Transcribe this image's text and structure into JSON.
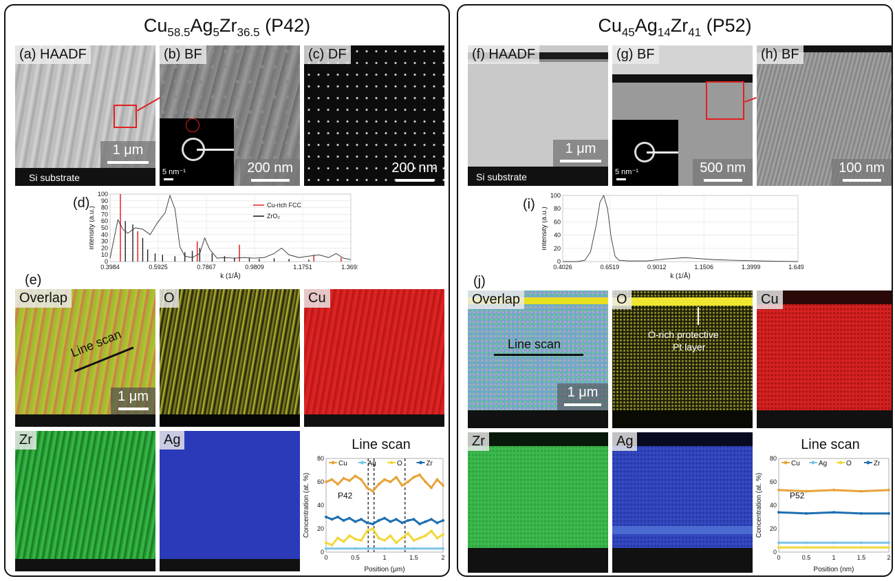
{
  "left": {
    "title": {
      "pre": "Cu",
      "s1": "58.5",
      "m1": "Ag",
      "s2": "5",
      "m2": "Zr",
      "s3": "36.5",
      "post": " (P42)"
    },
    "a": {
      "label": "(a) HAADF",
      "scale": "1 μm",
      "substrate": "Si substrate"
    },
    "b": {
      "label": "(b) BF",
      "scale": "200 nm",
      "inset_scale": "5 nm⁻¹"
    },
    "c": {
      "label": "(c) DF",
      "scale": "200 nm"
    },
    "d_letter": "(d)",
    "e_letter": "(e)",
    "maps": {
      "overlap": "Overlap",
      "o": "O",
      "cu": "Cu",
      "zr": "Zr",
      "ag": "Ag",
      "line_scan_label": "Line scan",
      "scale": "1 μm"
    }
  },
  "right": {
    "title": {
      "pre": "Cu",
      "s1": "45",
      "m1": "Ag",
      "s2": "14",
      "m2": "Zr",
      "s3": "41",
      "post": " (P52)"
    },
    "f": {
      "label": "(f) HAADF",
      "scale": "1 μm",
      "substrate": "Si substrate"
    },
    "g": {
      "label": "(g) BF",
      "scale": "500 nm",
      "inset_scale": "5 nm⁻¹"
    },
    "h": {
      "label": "(h) BF",
      "scale": "100 nm"
    },
    "i_letter": "(i)",
    "j_letter": "(j)",
    "maps": {
      "overlap": "Overlap",
      "o": "O",
      "cu": "Cu",
      "zr": "Zr",
      "ag": "Ag",
      "line_scan_label": "Line scan",
      "scale": "1 μm",
      "o_note_1": "O-rich protective",
      "o_note_2": "Pt layer"
    }
  },
  "colors": {
    "cu": "#e8a33a",
    "ag": "#7cc4e8",
    "o": "#f2d83a",
    "zr": "#1f6fb2",
    "fcc": "#e03030",
    "zro2": "#222222"
  },
  "chart_data": [
    {
      "id": "d",
      "type": "line",
      "xlabel": "k (1/Å)",
      "ylabel": "Intensity (a.u.)",
      "xlim": [
        0.3984,
        1.3693
      ],
      "ylim": [
        0,
        100
      ],
      "xticks": [
        "0.3984",
        "0.5925",
        "0.7867",
        "0.9809",
        "1.1751",
        "1.3693"
      ],
      "yticks": [
        0,
        10,
        20,
        30,
        40,
        50,
        60,
        70,
        80,
        90,
        100
      ],
      "legend": [
        {
          "name": "Cu-rich FCC"
        },
        {
          "name": "ZrO₂"
        }
      ],
      "profile": {
        "x": [
          0.3984,
          0.43,
          0.45,
          0.47,
          0.5,
          0.53,
          0.56,
          0.59,
          0.62,
          0.64,
          0.66,
          0.68,
          0.7,
          0.73,
          0.76,
          0.78,
          0.8,
          0.83,
          0.86,
          0.9,
          0.94,
          0.98,
          1.02,
          1.06,
          1.09,
          1.12,
          1.16,
          1.2,
          1.24,
          1.28,
          1.31,
          1.34,
          1.3693
        ],
        "y": [
          5,
          62,
          48,
          42,
          50,
          48,
          40,
          58,
          72,
          98,
          78,
          22,
          8,
          6,
          12,
          35,
          18,
          5,
          6,
          5,
          6,
          5,
          6,
          12,
          20,
          10,
          6,
          8,
          10,
          6,
          12,
          5,
          3
        ]
      },
      "fcc_sticks": {
        "x": [
          0.44,
          0.51,
          0.75,
          0.92,
          1.22,
          1.33
        ],
        "y": [
          100,
          45,
          30,
          25,
          10,
          6
        ]
      },
      "zro2_sticks": {
        "x": [
          0.46,
          0.49,
          0.53,
          0.55,
          0.58,
          0.61,
          0.66,
          0.7,
          0.73,
          0.76,
          0.81,
          0.86,
          0.9,
          0.96,
          1.0,
          1.06,
          1.12,
          1.2
        ],
        "y": [
          60,
          55,
          35,
          18,
          12,
          10,
          8,
          14,
          16,
          20,
          12,
          8,
          6,
          5,
          4,
          5,
          4,
          3
        ]
      }
    },
    {
      "id": "i",
      "type": "line",
      "xlabel": "k (1/Å)",
      "ylabel": "Intensity (a.u.)",
      "xlim": [
        0.4026,
        1.6493
      ],
      "ylim": [
        0,
        100
      ],
      "xticks": [
        "0.4026",
        "0.6519",
        "0.9012",
        "1.1506",
        "1.3999",
        "1.6493"
      ],
      "yticks": [
        0,
        20,
        40,
        60,
        80,
        100
      ],
      "profile": {
        "x": [
          0.4026,
          0.48,
          0.52,
          0.55,
          0.58,
          0.6,
          0.62,
          0.64,
          0.66,
          0.68,
          0.7,
          0.75,
          0.85,
          0.95,
          1.05,
          1.1,
          1.2,
          1.3,
          1.45,
          1.6493
        ],
        "y": [
          0,
          0,
          2,
          15,
          55,
          90,
          100,
          80,
          35,
          8,
          2,
          1,
          1,
          4,
          6,
          5,
          3,
          2,
          1,
          0
        ]
      }
    },
    {
      "id": "linescan-p42",
      "type": "line",
      "title": "Line scan",
      "annotation": "P42",
      "xlabel": "Position (μm)",
      "ylabel": "Concentration (at. %)",
      "xlim": [
        0,
        2
      ],
      "ylim": [
        0,
        80
      ],
      "xticks": [
        "0",
        "0.5",
        "1",
        "1.5",
        "2"
      ],
      "yticks": [
        "0",
        "20",
        "40",
        "60",
        "80"
      ],
      "vlines": [
        0.72,
        0.82,
        1.35
      ],
      "series": [
        {
          "name": "Cu",
          "x": [
            0,
            0.1,
            0.2,
            0.3,
            0.4,
            0.5,
            0.6,
            0.7,
            0.8,
            0.9,
            1.0,
            1.1,
            1.2,
            1.3,
            1.4,
            1.5,
            1.6,
            1.7,
            1.8,
            1.9,
            2.0
          ],
          "y": [
            60,
            62,
            58,
            63,
            61,
            65,
            62,
            55,
            52,
            58,
            62,
            60,
            64,
            57,
            60,
            64,
            66,
            60,
            55,
            62,
            57
          ]
        },
        {
          "name": "Ag",
          "x": [
            0,
            0.5,
            1.0,
            1.5,
            2.0
          ],
          "y": [
            3,
            3,
            3,
            3,
            3
          ]
        },
        {
          "name": "O",
          "x": [
            0,
            0.1,
            0.2,
            0.3,
            0.4,
            0.5,
            0.6,
            0.7,
            0.8,
            0.9,
            1.0,
            1.1,
            1.2,
            1.3,
            1.4,
            1.5,
            1.6,
            1.7,
            1.8,
            1.9,
            2.0
          ],
          "y": [
            8,
            6,
            12,
            9,
            14,
            11,
            10,
            18,
            20,
            12,
            10,
            14,
            8,
            12,
            16,
            10,
            12,
            14,
            18,
            12,
            15
          ]
        },
        {
          "name": "Zr",
          "x": [
            0,
            0.1,
            0.2,
            0.3,
            0.4,
            0.5,
            0.6,
            0.7,
            0.8,
            0.9,
            1.0,
            1.1,
            1.2,
            1.3,
            1.4,
            1.5,
            1.6,
            1.7,
            1.8,
            1.9,
            2.0
          ],
          "y": [
            30,
            28,
            30,
            27,
            29,
            26,
            28,
            25,
            24,
            27,
            29,
            26,
            28,
            25,
            27,
            28,
            24,
            26,
            28,
            25,
            27
          ]
        }
      ]
    },
    {
      "id": "linescan-p52",
      "type": "line",
      "title": "Line scan",
      "annotation": "P52",
      "xlabel": "Position (nm)",
      "ylabel": "Concentration (at. %)",
      "xlim": [
        0,
        2
      ],
      "ylim": [
        0,
        80
      ],
      "xticks": [
        "0",
        "0.5",
        "1",
        "1.5",
        "2"
      ],
      "yticks": [
        "0",
        "20",
        "40",
        "60",
        "80"
      ],
      "series": [
        {
          "name": "Cu",
          "x": [
            0,
            0.5,
            1.0,
            1.5,
            2.0
          ],
          "y": [
            53,
            52,
            53,
            52,
            53
          ]
        },
        {
          "name": "Ag",
          "x": [
            0,
            0.5,
            1.0,
            1.5,
            2.0
          ],
          "y": [
            8,
            8,
            8,
            8,
            8
          ]
        },
        {
          "name": "O",
          "x": [
            0,
            0.5,
            1.0,
            1.5,
            2.0
          ],
          "y": [
            4,
            4,
            4,
            4,
            4
          ]
        },
        {
          "name": "Zr",
          "x": [
            0,
            0.5,
            1.0,
            1.5,
            2.0
          ],
          "y": [
            34,
            33,
            34,
            33,
            33
          ]
        }
      ]
    }
  ]
}
